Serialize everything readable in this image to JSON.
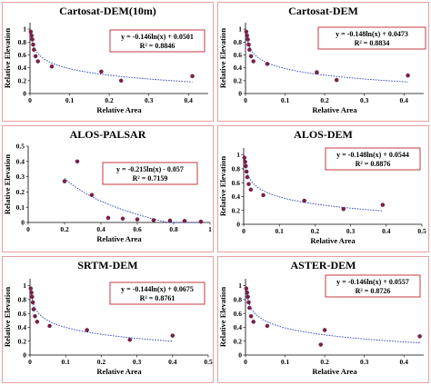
{
  "chart_data": [
    {
      "type": "scatter",
      "title": "Cartosat-DEM(10m)",
      "xlabel": "Relative Area",
      "ylabel": "Relative Elevation",
      "xlim": [
        0,
        0.45
      ],
      "ylim": [
        0,
        1.1
      ],
      "xticks": [
        "0",
        "0.1",
        "0.2",
        "0.3",
        "0.4"
      ],
      "yticks": [
        "0",
        "0.2",
        "0.4",
        "0.6",
        "0.8",
        "1"
      ],
      "series": [
        {
          "x": [
            0.002,
            0.004,
            0.006,
            0.008,
            0.01,
            0.014,
            0.02,
            0.055,
            0.18,
            0.23,
            0.41
          ],
          "y": [
            0.96,
            0.9,
            0.84,
            0.76,
            0.68,
            0.58,
            0.5,
            0.42,
            0.34,
            0.2,
            0.27
          ]
        }
      ],
      "trend": {
        "a": -0.146,
        "b": 0.0501
      },
      "equation": "y = -0.146ln(x) + 0.0501",
      "r2": "R² = 0.8846"
    },
    {
      "type": "scatter",
      "title": "Cartosat-DEM",
      "xlabel": "Relative Area",
      "ylabel": "Relative Elevation",
      "xlim": [
        0,
        0.45
      ],
      "ylim": [
        0,
        1.1
      ],
      "xticks": [
        "0",
        "0.1",
        "0.2",
        "0.3",
        "0.4"
      ],
      "yticks": [
        "0",
        "0.2",
        "0.4",
        "0.6",
        "0.8",
        "1"
      ],
      "series": [
        {
          "x": [
            0.002,
            0.004,
            0.006,
            0.008,
            0.01,
            0.014,
            0.02,
            0.055,
            0.18,
            0.23,
            0.41
          ],
          "y": [
            0.96,
            0.9,
            0.84,
            0.76,
            0.68,
            0.58,
            0.5,
            0.46,
            0.33,
            0.21,
            0.28
          ]
        }
      ],
      "trend": {
        "a": -0.148,
        "b": 0.0473
      },
      "equation": "y = -0.148ln(x) + 0.0473",
      "r2": "R² = 0.8834"
    },
    {
      "type": "scatter",
      "title": "ALOS-PALSAR",
      "xlabel": "Relative Area",
      "ylabel": "Relative Elevation",
      "xlim": [
        0,
        1
      ],
      "ylim": [
        0,
        0.5
      ],
      "xticks": [
        "0",
        "0.2",
        "0.4",
        "0.6",
        "0.8",
        "1"
      ],
      "yticks": [
        "0",
        "0.1",
        "0.2",
        "0.3",
        "0.4",
        "0.5"
      ],
      "series": [
        {
          "x": [
            0.2,
            0.27,
            0.35,
            0.44,
            0.52,
            0.6,
            0.69,
            0.78,
            0.86,
            0.95
          ],
          "y": [
            0.27,
            0.4,
            0.18,
            0.03,
            0.025,
            0.02,
            0.015,
            0.012,
            0.01,
            0.005
          ]
        }
      ],
      "trend": {
        "a": -0.215,
        "b": -0.057,
        "xmin": 0.2
      },
      "equation": "y = -0.215ln(x) - 0.057",
      "r2": "R² = 0.7159"
    },
    {
      "type": "scatter",
      "title": "ALOS-DEM",
      "xlabel": "Relative Area",
      "ylabel": "Relative Elevation",
      "xlim": [
        0,
        0.5
      ],
      "ylim": [
        0,
        1.1
      ],
      "xticks": [
        "0",
        "0.1",
        "0.2",
        "0.3",
        "0.4",
        "0.5"
      ],
      "yticks": [
        "0",
        "0.2",
        "0.4",
        "0.6",
        "0.8",
        "1"
      ],
      "series": [
        {
          "x": [
            0.002,
            0.004,
            0.006,
            0.008,
            0.01,
            0.014,
            0.02,
            0.055,
            0.17,
            0.28,
            0.39
          ],
          "y": [
            0.96,
            0.9,
            0.84,
            0.76,
            0.68,
            0.58,
            0.5,
            0.42,
            0.34,
            0.22,
            0.28
          ]
        }
      ],
      "trend": {
        "a": -0.148,
        "b": 0.0544
      },
      "equation": "y = -0.148ln(x) + 0.0544",
      "r2": "R² = 0.8876"
    },
    {
      "type": "scatter",
      "title": "SRTM-DEM",
      "xlabel": "Relative Area",
      "ylabel": "Relative Elevation",
      "xlim": [
        0,
        0.5
      ],
      "ylim": [
        0,
        1.1
      ],
      "xticks": [
        "0",
        "0.1",
        "0.2",
        "0.3",
        "0.4",
        "0.5"
      ],
      "yticks": [
        "0",
        "0.2",
        "0.4",
        "0.6",
        "0.8",
        "1"
      ],
      "series": [
        {
          "x": [
            0.002,
            0.004,
            0.006,
            0.008,
            0.01,
            0.014,
            0.02,
            0.055,
            0.16,
            0.28,
            0.4
          ],
          "y": [
            0.96,
            0.9,
            0.84,
            0.76,
            0.66,
            0.56,
            0.48,
            0.42,
            0.36,
            0.22,
            0.28
          ]
        }
      ],
      "trend": {
        "a": -0.144,
        "b": 0.0675
      },
      "equation": "y = -0.144ln(x) + 0.0675",
      "r2": "R² = 0.8761"
    },
    {
      "type": "scatter",
      "title": "ASTER-DEM",
      "xlabel": "Relative Area",
      "ylabel": "Relative Elevation",
      "xlim": [
        0,
        0.45
      ],
      "ylim": [
        0,
        1.1
      ],
      "xticks": [
        "0",
        "0.1",
        "0.2",
        "0.3",
        "0.4"
      ],
      "yticks": [
        "0",
        "0.2",
        "0.4",
        "0.6",
        "0.8",
        "1"
      ],
      "series": [
        {
          "x": [
            0.002,
            0.004,
            0.006,
            0.008,
            0.01,
            0.014,
            0.02,
            0.055,
            0.2,
            0.19,
            0.44
          ],
          "y": [
            0.96,
            0.9,
            0.84,
            0.76,
            0.68,
            0.56,
            0.48,
            0.42,
            0.36,
            0.15,
            0.27
          ]
        }
      ],
      "trend": {
        "a": -0.146,
        "b": 0.0557
      },
      "equation": "y = -0.146ln(x) + 0.0557",
      "r2": "R² = 0.8726"
    }
  ]
}
